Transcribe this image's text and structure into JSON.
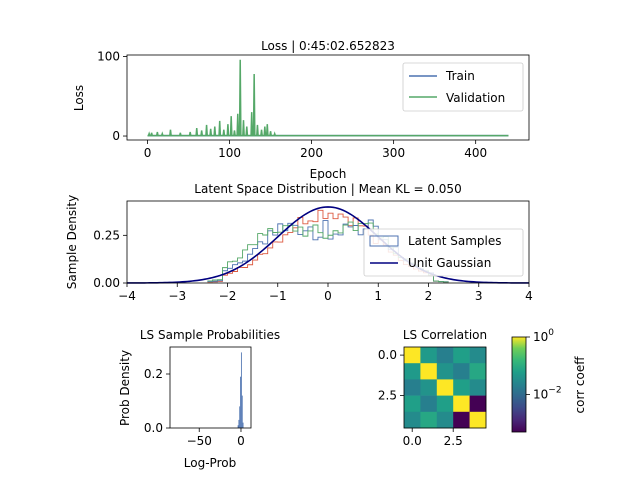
{
  "colors": {
    "train": "#4c72b0",
    "validation": "#55a868",
    "gaussian": "#000080",
    "hist_a": "#dd5a40",
    "hist_b": "#4c72b0",
    "hist_c": "#55a868"
  },
  "chart_data": [
    {
      "type": "line",
      "title": "Loss | 0:45:02.652823",
      "xlabel": "Epoch",
      "ylabel": "Loss",
      "xlim": [
        -25,
        465
      ],
      "ylim": [
        -5,
        102
      ],
      "xticks": [
        "0",
        "100",
        "200",
        "300",
        "400"
      ],
      "yticks": [
        "0",
        "100"
      ],
      "legend": "top-right",
      "series": [
        {
          "name": "Train",
          "x": [
            0,
            440
          ],
          "values": [
            0.5,
            0.5
          ]
        },
        {
          "name": "Validation",
          "spikes": [
            [
              2,
              3
            ],
            [
              5,
              4
            ],
            [
              12,
              5
            ],
            [
              18,
              3
            ],
            [
              28,
              8
            ],
            [
              40,
              4
            ],
            [
              52,
              5
            ],
            [
              60,
              10
            ],
            [
              66,
              7
            ],
            [
              72,
              14
            ],
            [
              77,
              9
            ],
            [
              82,
              12
            ],
            [
              88,
              19
            ],
            [
              93,
              8
            ],
            [
              98,
              15
            ],
            [
              102,
              25
            ],
            [
              106,
              7
            ],
            [
              110,
              28
            ],
            [
              113,
              96
            ],
            [
              117,
              20
            ],
            [
              121,
              12
            ],
            [
              127,
              30
            ],
            [
              130,
              78
            ],
            [
              134,
              14
            ],
            [
              139,
              8
            ],
            [
              143,
              12
            ],
            [
              146,
              15
            ],
            [
              150,
              6
            ],
            [
              155,
              3
            ]
          ],
          "baseline": 0.5,
          "x_end": 440
        }
      ]
    },
    {
      "type": "histogram",
      "title": "Latent Space Distribution | Mean KL = 0.050",
      "xlabel": "",
      "ylabel": "Sample Density",
      "xlim": [
        -4,
        4
      ],
      "ylim": [
        0,
        0.43
      ],
      "xticks": [
        "−4",
        "−3",
        "−2",
        "−1",
        "0",
        "1",
        "2",
        "3",
        "4"
      ],
      "yticks": [
        "0.00",
        "0.25"
      ],
      "legend": "center-right",
      "legend_entries": [
        "Latent Samples",
        "Unit Gaussian"
      ],
      "gaussian": {
        "mean": 0,
        "std": 1
      },
      "hist_range": [
        -2.4,
        2.4
      ]
    },
    {
      "type": "histogram",
      "title": "LS Sample Probabilities",
      "xlabel": "Log-Prob",
      "ylabel": "Prob Density",
      "xlim": [
        -85,
        12
      ],
      "ylim": [
        0,
        0.3
      ],
      "xticks": [
        "−50",
        "0"
      ],
      "yticks": [
        "0.0",
        "0.2"
      ],
      "bins": [
        [
          -4,
          0.01
        ],
        [
          -3,
          0.03
        ],
        [
          -2,
          0.08
        ],
        [
          -1,
          0.19
        ],
        [
          0,
          0.28
        ],
        [
          1,
          0.12
        ],
        [
          2,
          0.02
        ]
      ]
    },
    {
      "type": "heatmap",
      "title": "LS Correlation",
      "xticks": [
        "0.0",
        "2.5"
      ],
      "yticks": [
        "0.0",
        "2.5"
      ],
      "colorbar_label": "corr coeff",
      "colorbar_ticks": [
        "10",
        "10"
      ],
      "colorbar_exponents": [
        "0",
        "−2"
      ],
      "log_scale": true,
      "matrix": [
        [
          1.0,
          0.05,
          0.02,
          0.06,
          0.03
        ],
        [
          0.05,
          1.0,
          0.04,
          0.02,
          0.08
        ],
        [
          0.02,
          0.04,
          1.0,
          0.06,
          0.03
        ],
        [
          0.06,
          0.02,
          0.06,
          1.0,
          0.0005
        ],
        [
          0.03,
          0.08,
          0.03,
          0.0005,
          1.0
        ]
      ]
    }
  ]
}
